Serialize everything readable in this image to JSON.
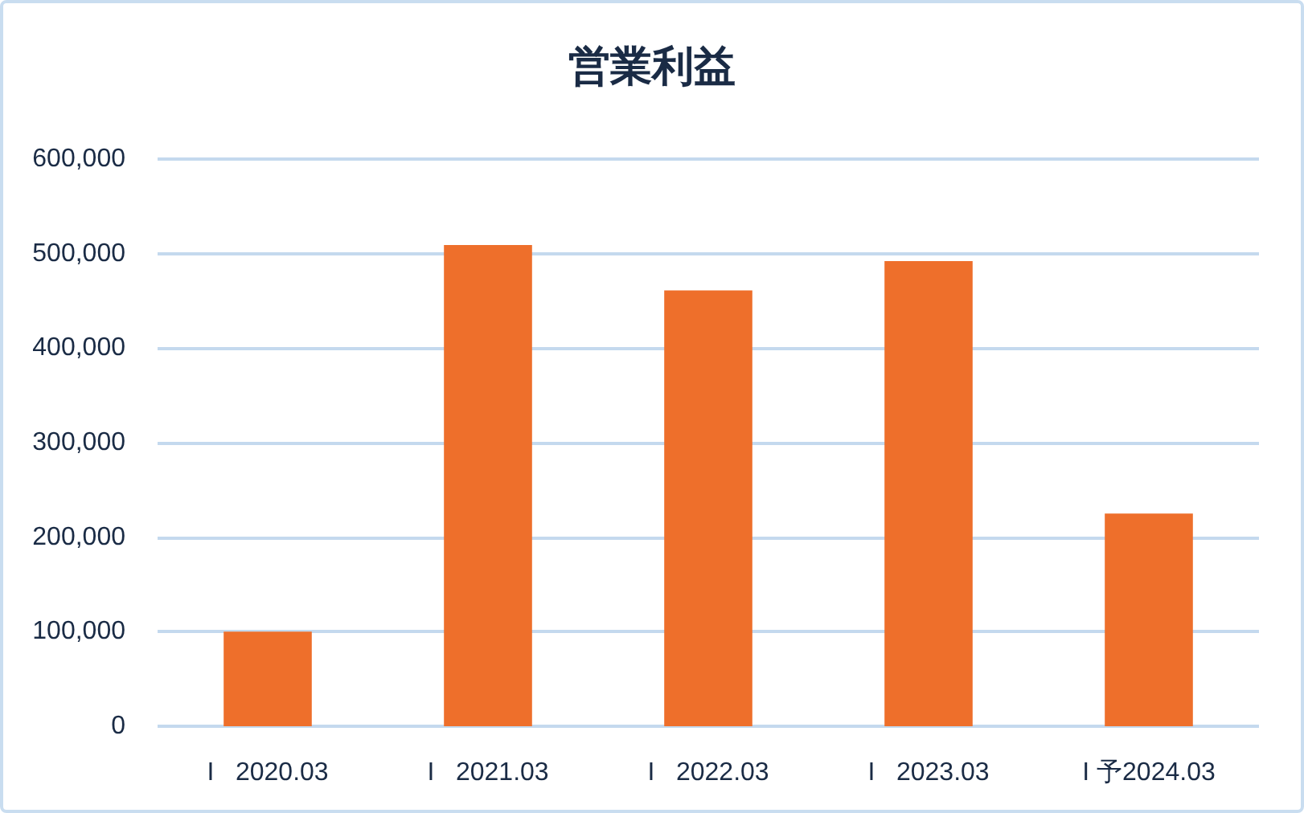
{
  "chart_data": {
    "type": "bar",
    "title": "営業利益",
    "categories": [
      "I   2020.03",
      "I   2021.03",
      "I   2022.03",
      "I   2023.03",
      "I 予2024.03"
    ],
    "values": [
      100000,
      509000,
      461000,
      492000,
      225000
    ],
    "color": "#ee6f2b",
    "ylim": [
      0,
      600000
    ],
    "yticks": [
      0,
      {
        "value": 100000,
        "label": "100,000"
      },
      {
        "value": 200000,
        "label": "200,000"
      },
      {
        "value": 300000,
        "label": "300,000"
      },
      {
        "value": 400000,
        "label": "400,000"
      },
      {
        "value": 500000,
        "label": "500,000"
      },
      {
        "value": 600000,
        "label": "600,000"
      }
    ],
    "grid": "y"
  }
}
